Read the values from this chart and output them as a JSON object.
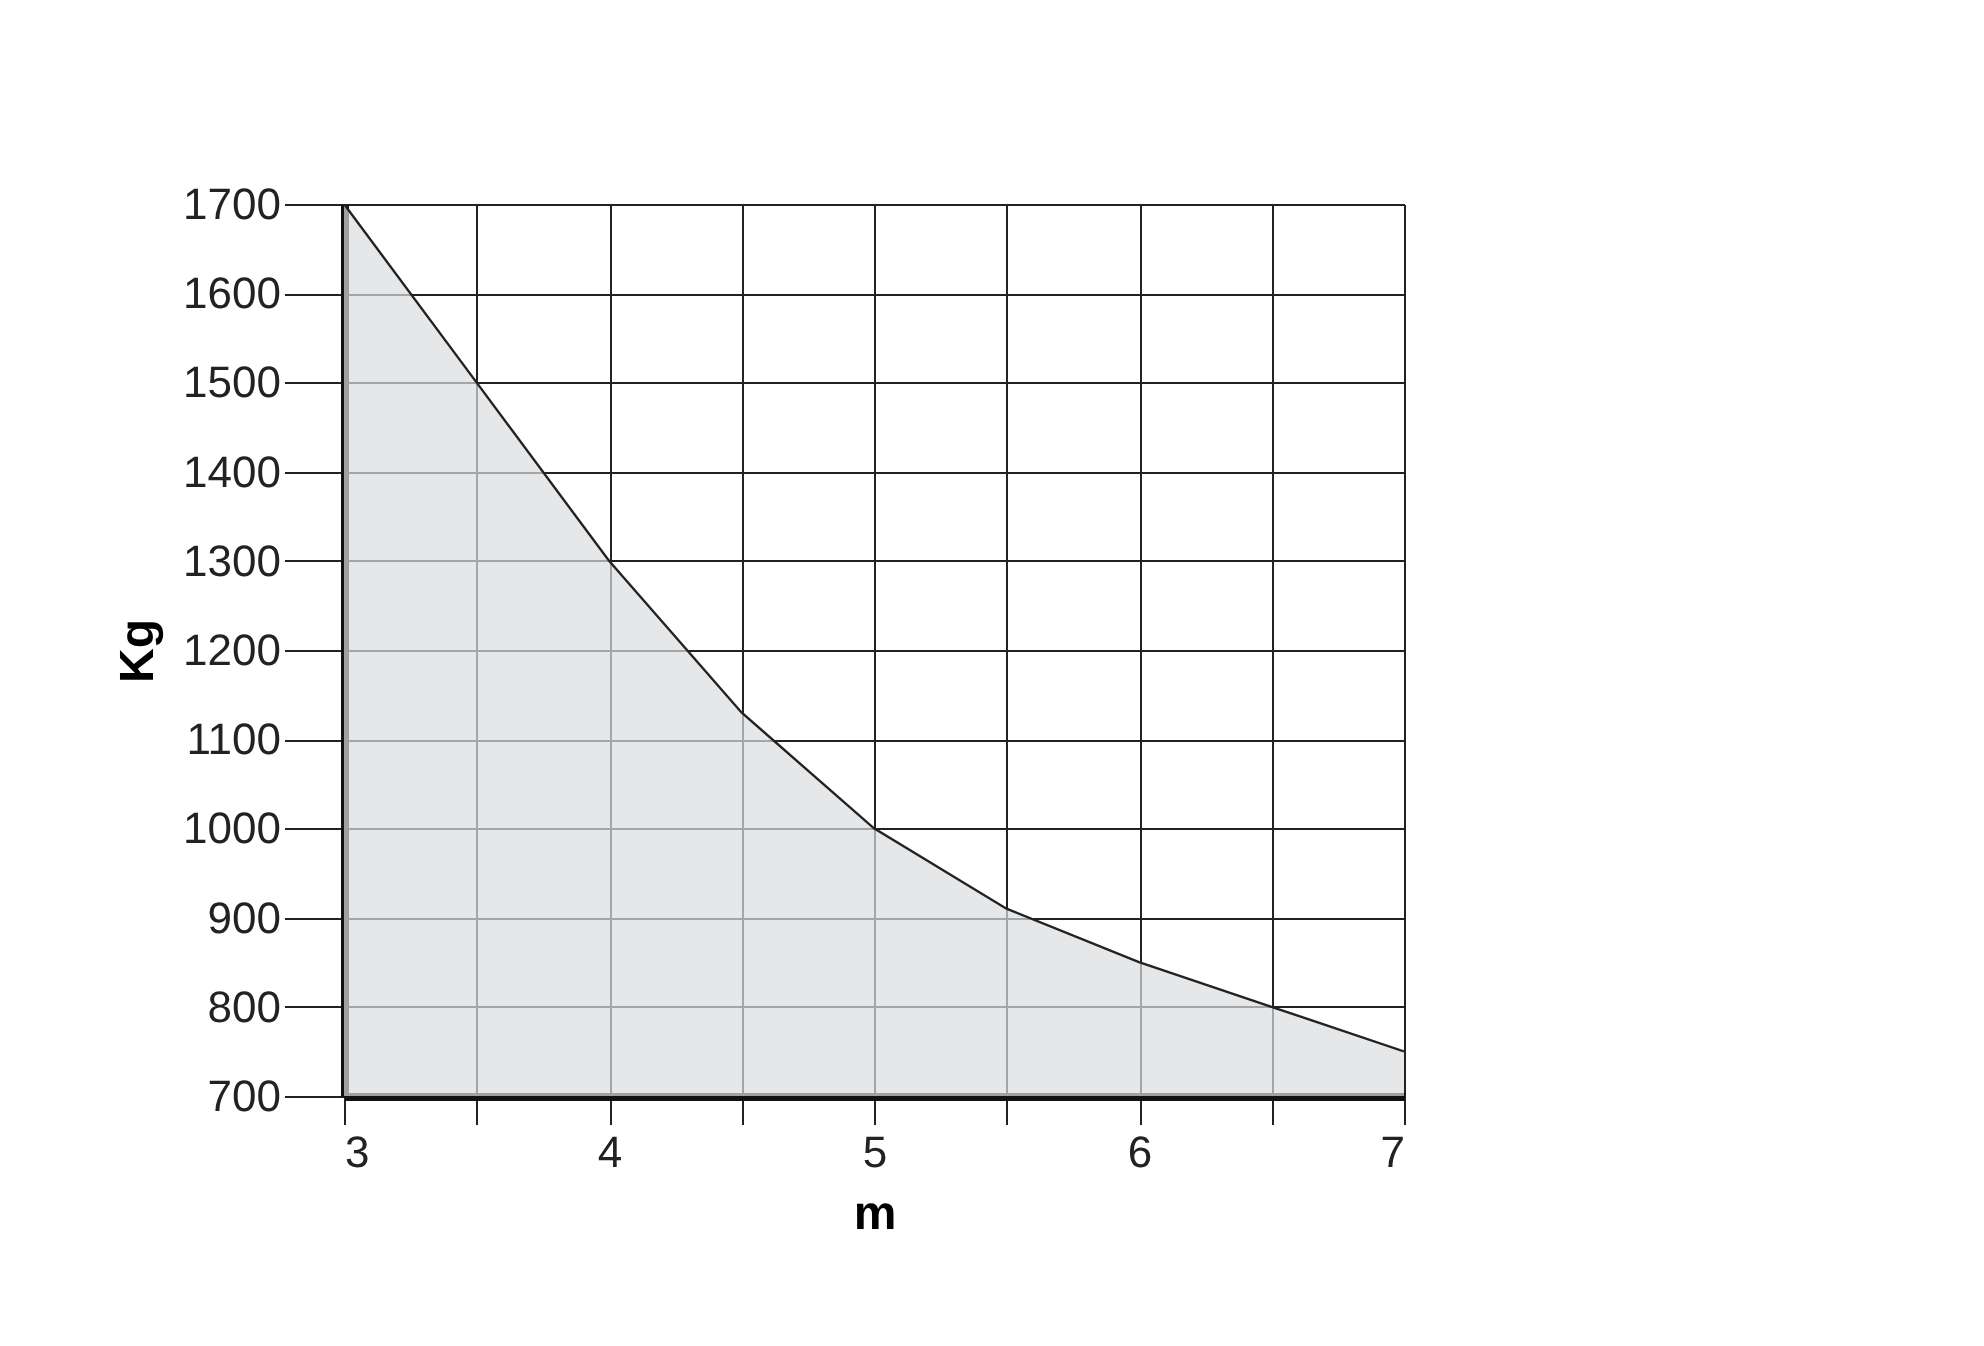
{
  "chart_data": {
    "type": "area",
    "xlabel": "m",
    "ylabel": "Kg",
    "x": [
      3,
      3.5,
      4,
      4.5,
      5,
      5.5,
      6,
      6.5,
      7
    ],
    "series": [
      {
        "color": "#dcdddf",
        "values": [
          1700,
          1500,
          1300,
          1130,
          1000,
          910,
          850,
          800,
          750
        ]
      }
    ],
    "xlim": [
      3,
      7
    ],
    "xticks": [
      3,
      {
        "value": 3.5,
        "label": null
      },
      4,
      {
        "value": 4.5,
        "label": null
      },
      5,
      {
        "value": 5.5,
        "label": null
      },
      6,
      {
        "value": 6.5,
        "label": null
      },
      7
    ],
    "ylim": [
      700,
      1700
    ],
    "yticks": [
      700,
      800,
      900,
      1000,
      1100,
      1200,
      1300,
      1400,
      1500,
      1600,
      1700
    ],
    "grid": true
  }
}
